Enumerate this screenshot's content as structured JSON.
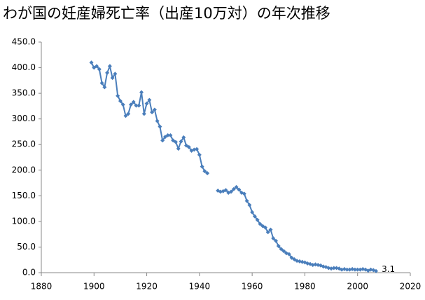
{
  "chart_data": {
    "type": "line",
    "title": "わが国の妊産婦死亡率（出産10万対）の年次推移",
    "x": [
      1899,
      1900,
      1901,
      1902,
      1903,
      1904,
      1905,
      1906,
      1907,
      1908,
      1909,
      1910,
      1911,
      1912,
      1913,
      1914,
      1915,
      1916,
      1917,
      1918,
      1919,
      1920,
      1921,
      1922,
      1923,
      1924,
      1925,
      1926,
      1927,
      1928,
      1929,
      1930,
      1931,
      1932,
      1933,
      1934,
      1935,
      1936,
      1937,
      1938,
      1939,
      1940,
      1941,
      1942,
      1943,
      1944,
      1945,
      1946,
      1947,
      1948,
      1949,
      1950,
      1951,
      1952,
      1953,
      1954,
      1955,
      1956,
      1957,
      1958,
      1959,
      1960,
      1961,
      1962,
      1963,
      1964,
      1965,
      1966,
      1967,
      1968,
      1969,
      1970,
      1971,
      1972,
      1973,
      1974,
      1975,
      1976,
      1977,
      1978,
      1979,
      1980,
      1981,
      1982,
      1983,
      1984,
      1985,
      1986,
      1987,
      1988,
      1989,
      1990,
      1991,
      1992,
      1993,
      1994,
      1995,
      1996,
      1997,
      1998,
      1999,
      2000,
      2001,
      2002,
      2003,
      2004,
      2005,
      2006,
      2007
    ],
    "series": [
      {
        "name": "妊産婦死亡率",
        "color": "#4a7ebb",
        "values": [
          410,
          400,
          403,
          397,
          370,
          362,
          390,
          403,
          380,
          388,
          345,
          335,
          328,
          306,
          310,
          328,
          333,
          326,
          326,
          352,
          310,
          330,
          337,
          313,
          318,
          296,
          285,
          258,
          265,
          268,
          268,
          258,
          255,
          242,
          256,
          264,
          248,
          245,
          238,
          240,
          241,
          230,
          207,
          198,
          194,
          null,
          null,
          null,
          160,
          158,
          159,
          161,
          156,
          158,
          163,
          167,
          162,
          156,
          154,
          140,
          132,
          118,
          110,
          103,
          95,
          91,
          88,
          79,
          84,
          67,
          62,
          52,
          46,
          42,
          38,
          36,
          29,
          26,
          23,
          22,
          21,
          20,
          18,
          17,
          15,
          16,
          15,
          14,
          12,
          11,
          9,
          8,
          9,
          9,
          8,
          6,
          7,
          6,
          6,
          7,
          6,
          6,
          6,
          7,
          6,
          4,
          6,
          5,
          3.1
        ]
      }
    ],
    "xlim": [
      1880,
      2020
    ],
    "xticks": [
      1880,
      1900,
      1920,
      1940,
      1960,
      1980,
      2000,
      2020
    ],
    "ylim": [
      0,
      450
    ],
    "yticks": [
      {
        "value": 0,
        "label": "0.0"
      },
      {
        "value": 50,
        "label": "50.0"
      },
      {
        "value": 100,
        "label": "100.0"
      },
      {
        "value": 150,
        "label": "150.0"
      },
      {
        "value": 200,
        "label": "200.0"
      },
      {
        "value": 250,
        "label": "250.0"
      },
      {
        "value": 300,
        "label": "300.0"
      },
      {
        "value": 350,
        "label": "350.0"
      },
      {
        "value": 400,
        "label": "400.0"
      },
      {
        "value": 450,
        "label": "450.0"
      }
    ],
    "grid": false
  }
}
